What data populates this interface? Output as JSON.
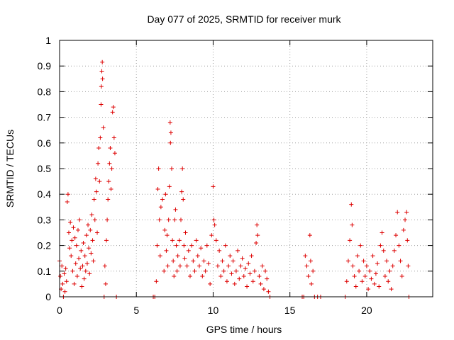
{
  "chart_data": {
    "type": "scatter",
    "title": "Day 077 of 2025, SRMTID for receiver murk",
    "xlabel": "GPS time / hours",
    "ylabel": "SRMTID / TECUs",
    "xlim": [
      0,
      24.3
    ],
    "ylim": [
      0,
      1
    ],
    "grid": true,
    "marker": "+",
    "color": "#dd0000",
    "x_ticks": [
      0,
      5,
      10,
      15,
      20
    ],
    "x_tick_labels": [
      "0",
      "5",
      "10",
      "15",
      "20"
    ],
    "y_ticks": [
      0,
      0.1,
      0.2,
      0.3,
      0.4,
      0.5,
      0.6,
      0.7,
      0.8,
      0.9,
      1
    ],
    "y_tick_labels": [
      "0",
      "0.1",
      "0.2",
      "0.3",
      "0.4",
      "0.5",
      "0.6",
      "0.7",
      "0.8",
      "0.9",
      "1"
    ],
    "series": [
      {
        "name": "SRMTID",
        "points": [
          [
            0.0,
            0.14
          ],
          [
            0.05,
            0.08
          ],
          [
            0.1,
            0.03
          ],
          [
            0.15,
            0.12
          ],
          [
            0.2,
            0.05
          ],
          [
            0.25,
            0.0
          ],
          [
            0.3,
            0.09
          ],
          [
            0.35,
            0.02
          ],
          [
            0.4,
            0.11
          ],
          [
            0.45,
            0.06
          ],
          [
            0.5,
            0.37
          ],
          [
            0.55,
            0.4
          ],
          [
            0.6,
            0.25
          ],
          [
            0.65,
            0.19
          ],
          [
            0.7,
            0.29
          ],
          [
            0.75,
            0.16
          ],
          [
            0.8,
            0.22
          ],
          [
            0.85,
            0.1
          ],
          [
            0.9,
            0.27
          ],
          [
            0.95,
            0.05
          ],
          [
            1.0,
            0.23
          ],
          [
            1.05,
            0.13
          ],
          [
            1.1,
            0.2
          ],
          [
            1.15,
            0.08
          ],
          [
            1.2,
            0.26
          ],
          [
            1.25,
            0.15
          ],
          [
            1.3,
            0.3
          ],
          [
            1.35,
            0.11
          ],
          [
            1.4,
            0.18
          ],
          [
            1.45,
            0.04
          ],
          [
            1.5,
            0.12
          ],
          [
            1.55,
            0.21
          ],
          [
            1.6,
            0.07
          ],
          [
            1.65,
            0.16
          ],
          [
            1.7,
            0.1
          ],
          [
            1.75,
            0.24
          ],
          [
            1.8,
            0.13
          ],
          [
            1.85,
            0.28
          ],
          [
            1.9,
            0.19
          ],
          [
            1.95,
            0.09
          ],
          [
            2.0,
            0.26
          ],
          [
            2.05,
            0.17
          ],
          [
            2.1,
            0.32
          ],
          [
            2.15,
            0.22
          ],
          [
            2.2,
            0.14
          ],
          [
            2.25,
            0.38
          ],
          [
            2.3,
            0.3
          ],
          [
            2.35,
            0.46
          ],
          [
            2.4,
            0.41
          ],
          [
            2.45,
            0.25
          ],
          [
            2.5,
            0.52
          ],
          [
            2.55,
            0.58
          ],
          [
            2.6,
            0.45
          ],
          [
            2.65,
            0.62
          ],
          [
            2.7,
            0.75
          ],
          [
            2.72,
            0.82
          ],
          [
            2.75,
            0.88
          ],
          [
            2.78,
            0.915
          ],
          [
            2.8,
            0.85
          ],
          [
            2.85,
            0.66
          ],
          [
            2.9,
            0.0
          ],
          [
            2.95,
            0.12
          ],
          [
            3.0,
            0.05
          ],
          [
            3.05,
            0.22
          ],
          [
            3.1,
            0.3
          ],
          [
            3.15,
            0.38
          ],
          [
            3.2,
            0.45
          ],
          [
            3.25,
            0.52
          ],
          [
            3.3,
            0.58
          ],
          [
            3.35,
            0.42
          ],
          [
            3.4,
            0.5
          ],
          [
            3.45,
            0.72
          ],
          [
            3.5,
            0.74
          ],
          [
            3.55,
            0.62
          ],
          [
            3.6,
            0.56
          ],
          [
            3.7,
            0.0
          ],
          [
            6.1,
            0.0
          ],
          [
            6.2,
            0.0
          ],
          [
            6.3,
            0.06
          ],
          [
            6.35,
            0.2
          ],
          [
            6.4,
            0.42
          ],
          [
            6.45,
            0.5
          ],
          [
            6.5,
            0.3
          ],
          [
            6.55,
            0.16
          ],
          [
            6.6,
            0.35
          ],
          [
            6.7,
            0.38
          ],
          [
            6.8,
            0.1
          ],
          [
            6.85,
            0.26
          ],
          [
            6.9,
            0.4
          ],
          [
            6.95,
            0.18
          ],
          [
            7.0,
            0.24
          ],
          [
            7.05,
            0.12
          ],
          [
            7.1,
            0.3
          ],
          [
            7.15,
            0.43
          ],
          [
            7.2,
            0.68
          ],
          [
            7.22,
            0.6
          ],
          [
            7.25,
            0.64
          ],
          [
            7.3,
            0.5
          ],
          [
            7.35,
            0.22
          ],
          [
            7.4,
            0.14
          ],
          [
            7.45,
            0.08
          ],
          [
            7.5,
            0.3
          ],
          [
            7.55,
            0.34
          ],
          [
            7.6,
            0.2
          ],
          [
            7.65,
            0.1
          ],
          [
            7.7,
            0.16
          ],
          [
            7.8,
            0.22
          ],
          [
            7.85,
            0.12
          ],
          [
            7.9,
            0.3
          ],
          [
            7.95,
            0.41
          ],
          [
            8.0,
            0.5
          ],
          [
            8.05,
            0.38
          ],
          [
            8.1,
            0.2
          ],
          [
            8.15,
            0.15
          ],
          [
            8.2,
            0.25
          ],
          [
            8.3,
            0.12
          ],
          [
            8.4,
            0.18
          ],
          [
            8.5,
            0.08
          ],
          [
            8.6,
            0.2
          ],
          [
            8.7,
            0.14
          ],
          [
            8.8,
            0.1
          ],
          [
            8.9,
            0.22
          ],
          [
            9.0,
            0.16
          ],
          [
            9.1,
            0.12
          ],
          [
            9.2,
            0.19
          ],
          [
            9.3,
            0.08
          ],
          [
            9.4,
            0.14
          ],
          [
            9.5,
            0.1
          ],
          [
            9.6,
            0.2
          ],
          [
            9.7,
            0.13
          ],
          [
            9.8,
            0.05
          ],
          [
            9.9,
            0.24
          ],
          [
            10.0,
            0.43
          ],
          [
            10.05,
            0.3
          ],
          [
            10.1,
            0.28
          ],
          [
            10.2,
            0.22
          ],
          [
            10.3,
            0.12
          ],
          [
            10.4,
            0.18
          ],
          [
            10.5,
            0.08
          ],
          [
            10.6,
            0.14
          ],
          [
            10.7,
            0.1
          ],
          [
            10.8,
            0.2
          ],
          [
            10.9,
            0.06
          ],
          [
            11.0,
            0.12
          ],
          [
            11.1,
            0.16
          ],
          [
            11.2,
            0.09
          ],
          [
            11.3,
            0.14
          ],
          [
            11.4,
            0.05
          ],
          [
            11.5,
            0.1
          ],
          [
            11.6,
            0.18
          ],
          [
            11.7,
            0.07
          ],
          [
            11.8,
            0.12
          ],
          [
            11.9,
            0.15
          ],
          [
            12.0,
            0.08
          ],
          [
            12.1,
            0.11
          ],
          [
            12.2,
            0.04
          ],
          [
            12.3,
            0.13
          ],
          [
            12.4,
            0.09
          ],
          [
            12.5,
            0.16
          ],
          [
            12.6,
            0.06
          ],
          [
            12.7,
            0.1
          ],
          [
            12.8,
            0.21
          ],
          [
            12.85,
            0.28
          ],
          [
            12.9,
            0.24
          ],
          [
            13.0,
            0.08
          ],
          [
            13.1,
            0.05
          ],
          [
            13.2,
            0.12
          ],
          [
            13.3,
            0.03
          ],
          [
            13.4,
            0.1
          ],
          [
            13.5,
            0.07
          ],
          [
            13.6,
            0.02
          ],
          [
            13.7,
            0.0
          ],
          [
            15.8,
            0.0
          ],
          [
            15.9,
            0.0
          ],
          [
            16.0,
            0.16
          ],
          [
            16.1,
            0.12
          ],
          [
            16.2,
            0.08
          ],
          [
            16.3,
            0.24
          ],
          [
            16.35,
            0.14
          ],
          [
            16.4,
            0.05
          ],
          [
            16.5,
            0.1
          ],
          [
            16.6,
            0.0
          ],
          [
            16.8,
            0.0
          ],
          [
            17.0,
            0.0
          ],
          [
            18.6,
            0.0
          ],
          [
            18.7,
            0.06
          ],
          [
            18.8,
            0.14
          ],
          [
            18.9,
            0.22
          ],
          [
            19.0,
            0.36
          ],
          [
            19.05,
            0.28
          ],
          [
            19.1,
            0.12
          ],
          [
            19.2,
            0.08
          ],
          [
            19.3,
            0.04
          ],
          [
            19.4,
            0.16
          ],
          [
            19.5,
            0.1
          ],
          [
            19.6,
            0.2
          ],
          [
            19.7,
            0.06
          ],
          [
            19.8,
            0.14
          ],
          [
            19.9,
            0.08
          ],
          [
            20.0,
            0.12
          ],
          [
            20.1,
            0.03
          ],
          [
            20.2,
            0.1
          ],
          [
            20.3,
            0.07
          ],
          [
            20.4,
            0.16
          ],
          [
            20.5,
            0.05
          ],
          [
            20.6,
            0.09
          ],
          [
            20.7,
            0.13
          ],
          [
            20.8,
            0.04
          ],
          [
            20.9,
            0.2
          ],
          [
            21.0,
            0.25
          ],
          [
            21.1,
            0.18
          ],
          [
            21.2,
            0.08
          ],
          [
            21.3,
            0.14
          ],
          [
            21.4,
            0.06
          ],
          [
            21.5,
            0.1
          ],
          [
            21.6,
            0.03
          ],
          [
            21.7,
            0.12
          ],
          [
            21.8,
            0.18
          ],
          [
            21.9,
            0.24
          ],
          [
            22.0,
            0.33
          ],
          [
            22.1,
            0.2
          ],
          [
            22.2,
            0.14
          ],
          [
            22.3,
            0.08
          ],
          [
            22.4,
            0.26
          ],
          [
            22.5,
            0.3
          ],
          [
            22.6,
            0.33
          ],
          [
            22.65,
            0.22
          ],
          [
            22.7,
            0.12
          ],
          [
            22.75,
            0.0
          ]
        ]
      }
    ]
  }
}
